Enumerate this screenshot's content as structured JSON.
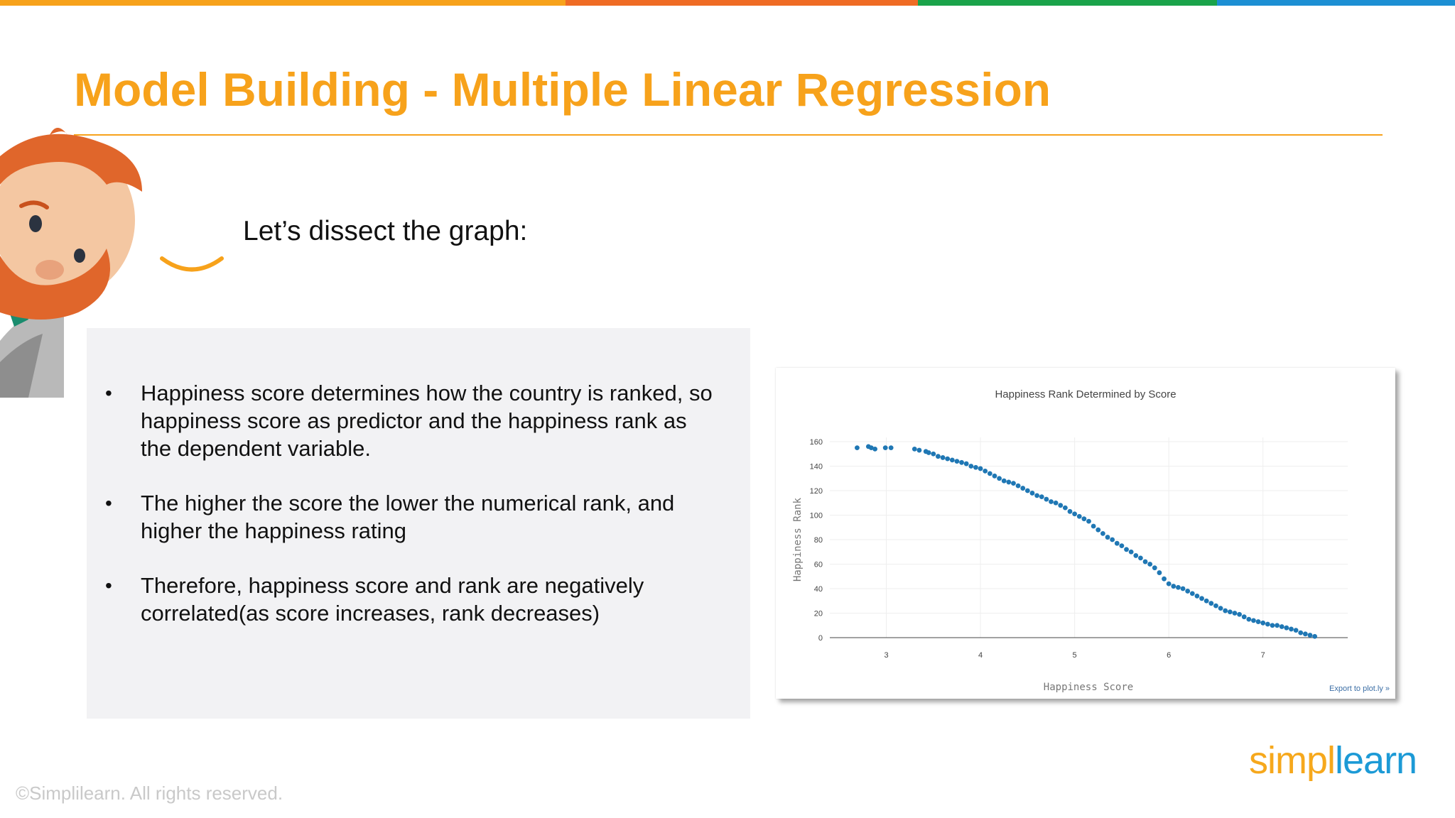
{
  "top_bar_colors": [
    "#f7a21b",
    "#ef6b24",
    "#1aa34a",
    "#1c8fd3"
  ],
  "slide": {
    "title": "Model Building - Multiple Linear Regression",
    "subtitle": "Let’s dissect the graph:",
    "bullets": [
      "Happiness score determines how the country is ranked, so happiness score as predictor and the happiness rank as the dependent variable.",
      "The higher the score the lower the numerical rank, and higher the happiness rating",
      "Therefore, happiness score and rank are negatively correlated(as score increases, rank decreases)"
    ],
    "bullet_symbol": "•"
  },
  "chart_data": {
    "type": "scatter",
    "title": "Happiness Rank Determined by Score",
    "xlabel": "Happiness Score",
    "ylabel": "Happiness Rank",
    "xlim": [
      2.4,
      7.9
    ],
    "ylim": [
      0,
      160
    ],
    "xticks": [
      3,
      4,
      5,
      6,
      7
    ],
    "yticks": [
      0,
      20,
      40,
      60,
      80,
      100,
      120,
      140,
      160
    ],
    "grid": true,
    "marker_color": "#1f77b4",
    "series": [
      {
        "points": [
          [
            2.69,
            155
          ],
          [
            2.81,
            156
          ],
          [
            2.84,
            155
          ],
          [
            2.88,
            154
          ],
          [
            2.99,
            155
          ],
          [
            3.05,
            155
          ],
          [
            3.3,
            154
          ],
          [
            3.35,
            153
          ],
          [
            3.42,
            152
          ],
          [
            3.45,
            151
          ],
          [
            3.5,
            150
          ],
          [
            3.55,
            148
          ],
          [
            3.6,
            147
          ],
          [
            3.65,
            146
          ],
          [
            3.7,
            145
          ],
          [
            3.75,
            144
          ],
          [
            3.8,
            143
          ],
          [
            3.85,
            142
          ],
          [
            3.9,
            140
          ],
          [
            3.95,
            139
          ],
          [
            4.0,
            138
          ],
          [
            4.05,
            136
          ],
          [
            4.1,
            134
          ],
          [
            4.15,
            132
          ],
          [
            4.2,
            130
          ],
          [
            4.25,
            128
          ],
          [
            4.3,
            127
          ],
          [
            4.35,
            126
          ],
          [
            4.4,
            124
          ],
          [
            4.45,
            122
          ],
          [
            4.5,
            120
          ],
          [
            4.55,
            118
          ],
          [
            4.6,
            116
          ],
          [
            4.65,
            115
          ],
          [
            4.7,
            113
          ],
          [
            4.75,
            111
          ],
          [
            4.8,
            110
          ],
          [
            4.85,
            108
          ],
          [
            4.9,
            106
          ],
          [
            4.95,
            103
          ],
          [
            5.0,
            101
          ],
          [
            5.05,
            99
          ],
          [
            5.1,
            97
          ],
          [
            5.15,
            95
          ],
          [
            5.2,
            91
          ],
          [
            5.25,
            88
          ],
          [
            5.3,
            85
          ],
          [
            5.35,
            82
          ],
          [
            5.4,
            80
          ],
          [
            5.45,
            77
          ],
          [
            5.5,
            75
          ],
          [
            5.55,
            72
          ],
          [
            5.6,
            70
          ],
          [
            5.65,
            67
          ],
          [
            5.7,
            65
          ],
          [
            5.75,
            62
          ],
          [
            5.8,
            60
          ],
          [
            5.85,
            57
          ],
          [
            5.9,
            53
          ],
          [
            5.95,
            48
          ],
          [
            6.0,
            44
          ],
          [
            6.05,
            42
          ],
          [
            6.1,
            41
          ],
          [
            6.15,
            40
          ],
          [
            6.2,
            38
          ],
          [
            6.25,
            36
          ],
          [
            6.3,
            34
          ],
          [
            6.35,
            32
          ],
          [
            6.4,
            30
          ],
          [
            6.45,
            28
          ],
          [
            6.5,
            26
          ],
          [
            6.55,
            24
          ],
          [
            6.6,
            22
          ],
          [
            6.65,
            21
          ],
          [
            6.7,
            20
          ],
          [
            6.75,
            19
          ],
          [
            6.8,
            17
          ],
          [
            6.85,
            15
          ],
          [
            6.9,
            14
          ],
          [
            6.95,
            13
          ],
          [
            7.0,
            12
          ],
          [
            7.05,
            11
          ],
          [
            7.1,
            10
          ],
          [
            7.15,
            10
          ],
          [
            7.2,
            9
          ],
          [
            7.25,
            8
          ],
          [
            7.3,
            7
          ],
          [
            7.35,
            6
          ],
          [
            7.4,
            4
          ],
          [
            7.45,
            3
          ],
          [
            7.5,
            2
          ],
          [
            7.55,
            1
          ]
        ]
      }
    ]
  },
  "chart_footer": {
    "export_link": "Export to plot.ly »"
  },
  "footer": {
    "copyright": "©Simplilearn. All rights reserved.",
    "logo_part1": "simpl",
    "logo_part2": "learn"
  }
}
